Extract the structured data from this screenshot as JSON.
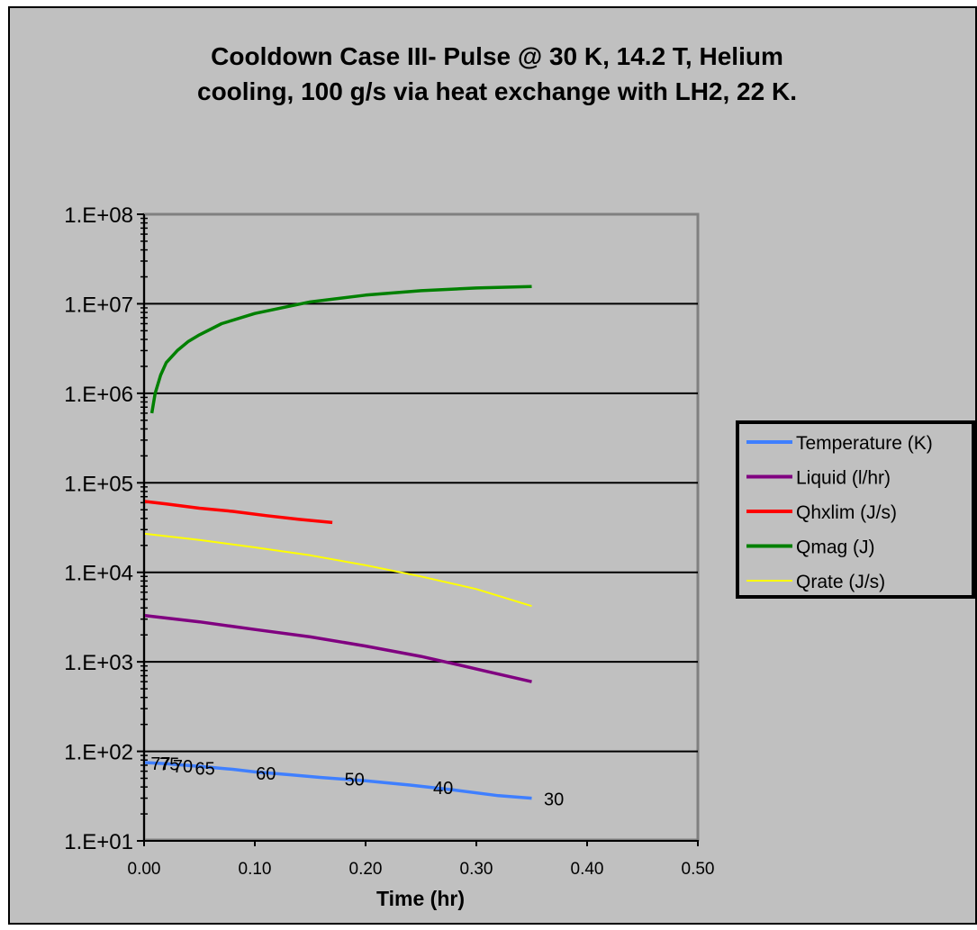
{
  "chart_data": {
    "type": "line",
    "title_lines": [
      "Cooldown Case III- Pulse @ 30 K, 14.2 T, Helium",
      "cooling, 100 g/s via heat exchange with LH2, 22 K."
    ],
    "xlabel": "Time (hr)",
    "ylabel": "",
    "x_scale": "linear",
    "y_scale": "log",
    "xlim": [
      0,
      0.5
    ],
    "ylim": [
      10,
      100000000
    ],
    "x_ticks": [
      "0.00",
      "0.10",
      "0.20",
      "0.30",
      "0.40",
      "0.50"
    ],
    "y_ticks": [
      "1.E+01",
      "1.E+02",
      "1.E+03",
      "1.E+04",
      "1.E+05",
      "1.E+06",
      "1.E+07",
      "1.E+08"
    ],
    "grid": "horizontal major",
    "legend_position": "right",
    "series": [
      {
        "name": "Temperature (K)",
        "color": "#3f7fff",
        "x": [
          0,
          0.02,
          0.05,
          0.08,
          0.1,
          0.13,
          0.16,
          0.2,
          0.24,
          0.28,
          0.32,
          0.35
        ],
        "y": [
          75,
          73,
          68,
          63,
          59,
          55,
          51,
          47,
          42,
          37,
          32,
          30
        ]
      },
      {
        "name": "Liquid (l/hr)",
        "color": "#800080",
        "x": [
          0,
          0.05,
          0.1,
          0.15,
          0.2,
          0.25,
          0.28,
          0.31,
          0.35
        ],
        "y": [
          3300,
          2800,
          2300,
          1900,
          1500,
          1150,
          950,
          780,
          600
        ]
      },
      {
        "name": "Qhxlim (J/s)",
        "color": "#ff0000",
        "x": [
          0,
          0.02,
          0.05,
          0.08,
          0.11,
          0.14,
          0.17
        ],
        "y": [
          62000,
          58000,
          52000,
          48000,
          43000,
          39000,
          36000
        ]
      },
      {
        "name": "Qmag  (J)",
        "color": "#008000",
        "x": [
          0.007,
          0.01,
          0.015,
          0.02,
          0.03,
          0.04,
          0.05,
          0.07,
          0.1,
          0.15,
          0.2,
          0.25,
          0.3,
          0.35
        ],
        "y": [
          600000,
          1000000,
          1600000,
          2200000,
          3000000,
          3800000,
          4500000,
          6000000,
          7800000,
          10500000,
          12500000,
          14000000,
          15000000,
          15600000
        ]
      },
      {
        "name": "Qrate  (J/s)",
        "color": "#ffff00",
        "x": [
          0,
          0.05,
          0.1,
          0.15,
          0.2,
          0.25,
          0.3,
          0.35
        ],
        "y": [
          27000,
          23000,
          19000,
          15500,
          12000,
          9000,
          6500,
          4200
        ]
      }
    ],
    "data_labels": [
      {
        "text": "77",
        "x": 0.015,
        "y": 75
      },
      {
        "text": "75",
        "x": 0.023,
        "y": 74
      },
      {
        "text": "70",
        "x": 0.035,
        "y": 70
      },
      {
        "text": "65",
        "x": 0.055,
        "y": 66
      },
      {
        "text": "60",
        "x": 0.11,
        "y": 58
      },
      {
        "text": "50",
        "x": 0.19,
        "y": 50
      },
      {
        "text": "40",
        "x": 0.27,
        "y": 40
      },
      {
        "text": "30",
        "x": 0.37,
        "y": 30
      }
    ]
  }
}
